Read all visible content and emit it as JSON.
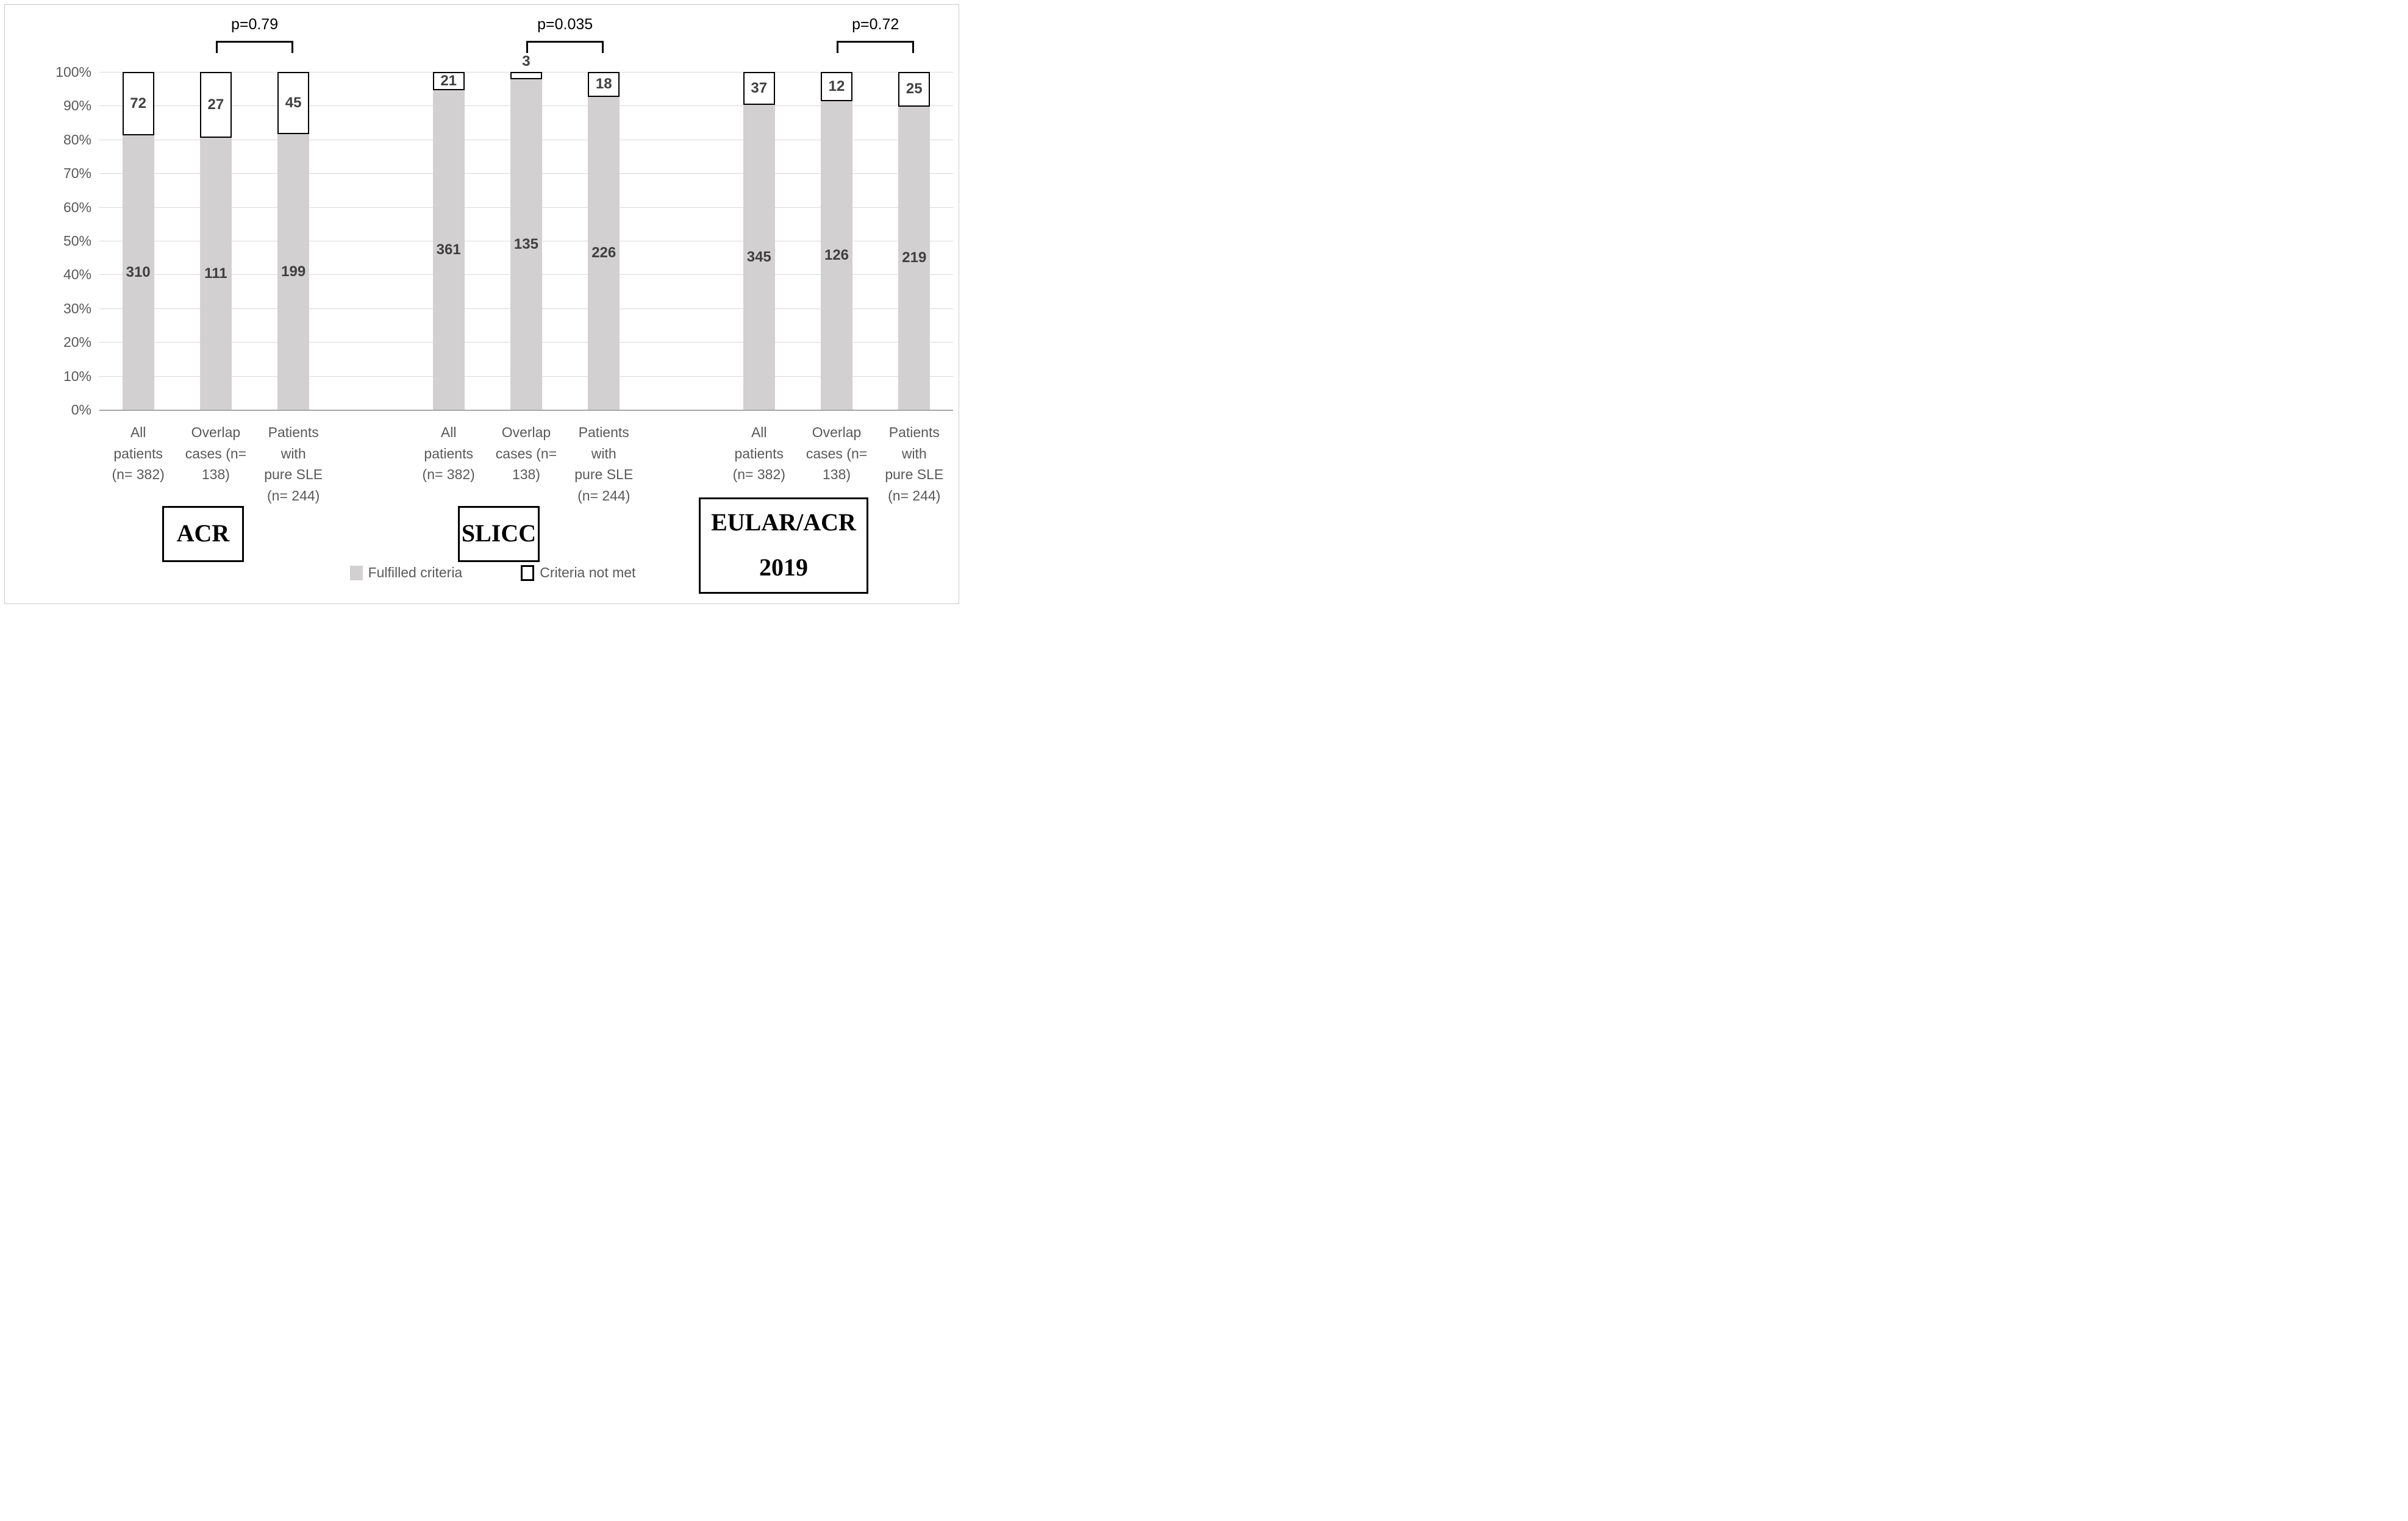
{
  "figure": {
    "colors": {
      "fulfilled_fill": "#d2d0d0",
      "not_met_fill": "#ffffff",
      "segment_border": "#000000",
      "gridline": "#d9d9d9",
      "baseline": "#a6a6a6",
      "axis_text": "#595959",
      "value_text": "#404040",
      "p_value_text": "#000000",
      "figure_border": "#c9c9c9"
    },
    "legend": {
      "items": [
        {
          "label": "Fulfilled criteria",
          "swatch": "gray-square"
        },
        {
          "label": "Criteria not met",
          "swatch": "white-square-black-border"
        }
      ],
      "position": "bottom-center"
    }
  },
  "chart_data": {
    "type": "bar",
    "subtype": "stacked-100percent",
    "title": "",
    "xlabel": "",
    "ylabel": "",
    "ylim": [
      0,
      100
    ],
    "grid": true,
    "y_tick_labels": [
      "100%",
      "90%",
      "80%",
      "70%",
      "60%",
      "50%",
      "40%",
      "30%",
      "20%",
      "10%",
      "0%"
    ],
    "series_names": [
      "Fulfilled criteria",
      "Criteria not met"
    ],
    "groups": [
      {
        "name": "ACR",
        "box_label": "ACR",
        "p_value": "p=0.79",
        "p_value_between": [
          "Overlap cases (n= 138)",
          "Patients with pure SLE (n= 244)"
        ],
        "bars": [
          {
            "category": "All patients (n= 382)",
            "category_lines": "All\npatients\n(n= 382)",
            "total": 382,
            "fulfilled": 310,
            "not_met": 72,
            "fulfilled_pct": 81.2,
            "not_met_pct": 18.8,
            "not_met_label_outside": false
          },
          {
            "category": "Overlap cases (n= 138)",
            "category_lines": "Overlap\ncases (n=\n138)",
            "total": 138,
            "fulfilled": 111,
            "not_met": 27,
            "fulfilled_pct": 80.4,
            "not_met_pct": 19.6,
            "not_met_label_outside": false
          },
          {
            "category": "Patients with pure SLE (n= 244)",
            "category_lines": "Patients\nwith\npure SLE\n(n= 244)",
            "total": 244,
            "fulfilled": 199,
            "not_met": 45,
            "fulfilled_pct": 81.6,
            "not_met_pct": 18.4,
            "not_met_label_outside": false
          }
        ]
      },
      {
        "name": "SLICC",
        "box_label": "SLICC",
        "p_value": "p=0.035",
        "p_value_between": [
          "Overlap cases (n= 138)",
          "Patients with pure SLE (n= 244)"
        ],
        "bars": [
          {
            "category": "All patients (n= 382)",
            "category_lines": "All\npatients\n(n= 382)",
            "total": 382,
            "fulfilled": 361,
            "not_met": 21,
            "fulfilled_pct": 94.5,
            "not_met_pct": 5.5,
            "not_met_label_outside": false
          },
          {
            "category": "Overlap cases (n= 138)",
            "category_lines": "Overlap\ncases (n=\n138)",
            "total": 138,
            "fulfilled": 135,
            "not_met": 3,
            "fulfilled_pct": 97.8,
            "not_met_pct": 2.2,
            "not_met_label_outside": true
          },
          {
            "category": "Patients with pure SLE (n= 244)",
            "category_lines": "Patients\nwith\npure SLE\n(n= 244)",
            "total": 244,
            "fulfilled": 226,
            "not_met": 18,
            "fulfilled_pct": 92.6,
            "not_met_pct": 7.4,
            "not_met_label_outside": false
          }
        ]
      },
      {
        "name": "EULAR/ACR 2019",
        "box_label": "EULAR/ACR\n2019",
        "p_value": "p=0.72",
        "p_value_between": [
          "Overlap cases (n= 138)",
          "Patients with pure SLE (n= 244)"
        ],
        "bars": [
          {
            "category": "All patients (n= 382)",
            "category_lines": "All\npatients\n(n= 382)",
            "total": 382,
            "fulfilled": 345,
            "not_met": 37,
            "fulfilled_pct": 90.3,
            "not_met_pct": 9.7,
            "not_met_label_outside": false
          },
          {
            "category": "Overlap cases (n= 138)",
            "category_lines": "Overlap\ncases (n=\n138)",
            "total": 138,
            "fulfilled": 126,
            "not_met": 12,
            "fulfilled_pct": 91.3,
            "not_met_pct": 8.7,
            "not_met_label_outside": false
          },
          {
            "category": "Patients with pure SLE (n= 244)",
            "category_lines": "Patients\nwith\npure SLE\n(n= 244)",
            "total": 244,
            "fulfilled": 219,
            "not_met": 25,
            "fulfilled_pct": 89.8,
            "not_met_pct": 10.2,
            "not_met_label_outside": false
          }
        ]
      }
    ],
    "layout_hints": {
      "slots_per_row": 11,
      "spacer_slots": [
        3,
        7
      ],
      "bracket_spans_bars": [
        1,
        2
      ]
    }
  }
}
